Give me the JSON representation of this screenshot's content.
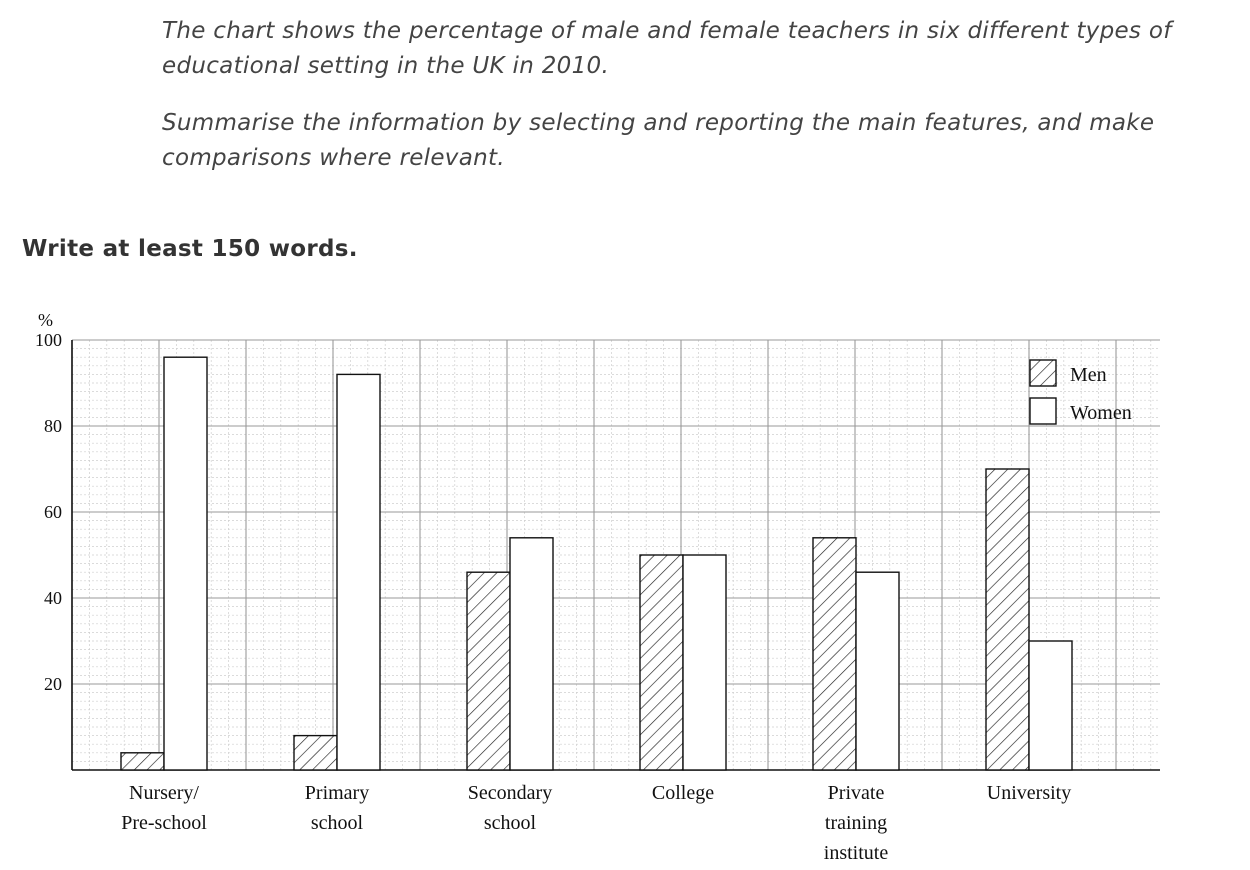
{
  "prompt": {
    "line1": "The chart shows the percentage of male and female teachers in six different types of educational setting in the UK in 2010.",
    "line2": "Summarise the information by selecting and reporting the main features, and make comparisons where relevant."
  },
  "instruction": "Write at least 150 words.",
  "chart_data": {
    "type": "bar",
    "ylabel": "%",
    "ylim": [
      0,
      100
    ],
    "yticks": [
      20,
      40,
      60,
      80,
      100
    ],
    "grid": true,
    "legend_position": "top-right",
    "categories": [
      [
        "Nursery/",
        "Pre-school"
      ],
      [
        "Primary",
        "school"
      ],
      [
        "Secondary",
        "school"
      ],
      [
        "College"
      ],
      [
        "Private",
        "training",
        "institute"
      ],
      [
        "University"
      ]
    ],
    "series": [
      {
        "name": "Men",
        "pattern": "hatched",
        "values": [
          4,
          8,
          46,
          50,
          54,
          70
        ]
      },
      {
        "name": "Women",
        "pattern": "plain",
        "values": [
          96,
          92,
          54,
          50,
          46,
          30
        ]
      }
    ],
    "colors": {
      "bar_fill": "#ffffff",
      "bar_stroke": "#111111",
      "grid_major": "#9a9a9a",
      "grid_minor": "#cfcfcf"
    }
  }
}
